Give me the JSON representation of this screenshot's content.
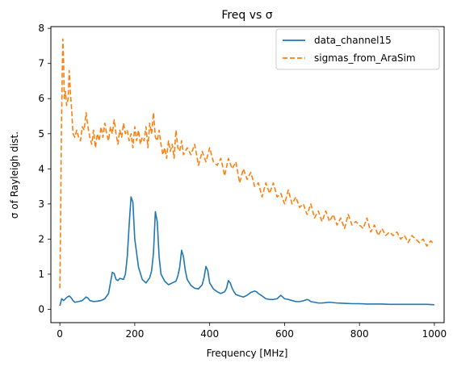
{
  "chart_data": {
    "type": "line",
    "title": "Freq vs σ",
    "xlabel": "Frequency [MHz]",
    "ylabel": "σ of Rayleigh dist.",
    "xlim": [
      -24,
      1026
    ],
    "ylim": [
      -0.38,
      8.05
    ],
    "xticks": [
      0,
      200,
      400,
      600,
      800,
      1000
    ],
    "yticks": [
      0,
      1,
      2,
      3,
      4,
      5,
      6,
      7,
      8
    ],
    "grid": false,
    "legend": {
      "position": "top-right"
    },
    "series": [
      {
        "name": "data_channel15",
        "color": "#1f77b4",
        "linestyle": "solid",
        "x": [
          0,
          5,
          10,
          15,
          20,
          25,
          30,
          35,
          40,
          50,
          60,
          65,
          70,
          75,
          80,
          90,
          100,
          110,
          120,
          130,
          135,
          140,
          145,
          150,
          155,
          160,
          170,
          175,
          180,
          185,
          190,
          195,
          200,
          205,
          210,
          220,
          230,
          240,
          245,
          250,
          255,
          260,
          265,
          270,
          280,
          290,
          300,
          310,
          315,
          320,
          325,
          330,
          335,
          340,
          350,
          360,
          370,
          380,
          385,
          390,
          395,
          400,
          410,
          420,
          430,
          440,
          445,
          450,
          455,
          460,
          465,
          470,
          480,
          490,
          500,
          510,
          520,
          525,
          530,
          540,
          550,
          560,
          570,
          580,
          585,
          590,
          595,
          600,
          610,
          620,
          630,
          640,
          650,
          655,
          660,
          665,
          670,
          680,
          690,
          700,
          710,
          720,
          740,
          760,
          780,
          800,
          820,
          840,
          860,
          880,
          900,
          920,
          940,
          960,
          980,
          1000
        ],
        "y": [
          0.1,
          0.3,
          0.25,
          0.3,
          0.35,
          0.38,
          0.33,
          0.25,
          0.2,
          0.22,
          0.25,
          0.3,
          0.35,
          0.32,
          0.25,
          0.22,
          0.23,
          0.25,
          0.3,
          0.45,
          0.75,
          1.05,
          1.02,
          0.85,
          0.82,
          0.88,
          0.85,
          1.0,
          1.5,
          2.4,
          3.2,
          3.05,
          2.0,
          1.6,
          1.2,
          0.85,
          0.75,
          0.9,
          1.1,
          1.6,
          2.78,
          2.5,
          1.5,
          1.0,
          0.8,
          0.7,
          0.75,
          0.8,
          0.95,
          1.2,
          1.68,
          1.5,
          1.1,
          0.85,
          0.68,
          0.6,
          0.58,
          0.7,
          0.9,
          1.22,
          1.1,
          0.75,
          0.58,
          0.5,
          0.45,
          0.5,
          0.6,
          0.82,
          0.75,
          0.6,
          0.5,
          0.42,
          0.38,
          0.35,
          0.4,
          0.48,
          0.52,
          0.5,
          0.45,
          0.38,
          0.3,
          0.28,
          0.28,
          0.3,
          0.35,
          0.4,
          0.35,
          0.3,
          0.28,
          0.25,
          0.22,
          0.22,
          0.24,
          0.26,
          0.28,
          0.26,
          0.22,
          0.2,
          0.18,
          0.18,
          0.19,
          0.2,
          0.18,
          0.17,
          0.16,
          0.16,
          0.15,
          0.15,
          0.15,
          0.14,
          0.14,
          0.14,
          0.14,
          0.14,
          0.14,
          0.13
        ]
      },
      {
        "name": "sigmas_from_AraSim",
        "color": "#ff7f0e",
        "linestyle": "dashed",
        "x": [
          0,
          2,
          4,
          6,
          8,
          10,
          12,
          15,
          18,
          22,
          25,
          28,
          32,
          35,
          40,
          45,
          50,
          55,
          60,
          65,
          70,
          75,
          80,
          85,
          90,
          95,
          100,
          105,
          110,
          115,
          120,
          125,
          130,
          135,
          140,
          145,
          150,
          155,
          160,
          165,
          170,
          175,
          180,
          185,
          190,
          195,
          200,
          205,
          210,
          215,
          220,
          225,
          230,
          235,
          240,
          245,
          250,
          255,
          260,
          265,
          270,
          275,
          280,
          285,
          290,
          295,
          300,
          305,
          310,
          315,
          320,
          325,
          330,
          340,
          350,
          360,
          370,
          380,
          390,
          400,
          410,
          420,
          430,
          440,
          450,
          460,
          470,
          480,
          490,
          500,
          510,
          520,
          530,
          540,
          550,
          560,
          570,
          580,
          590,
          600,
          610,
          620,
          630,
          640,
          650,
          660,
          670,
          680,
          690,
          700,
          710,
          720,
          730,
          740,
          750,
          760,
          770,
          780,
          790,
          800,
          810,
          820,
          830,
          840,
          850,
          860,
          870,
          880,
          890,
          900,
          910,
          920,
          930,
          940,
          950,
          960,
          970,
          980,
          990,
          1000
        ],
        "y": [
          0.6,
          2.5,
          5.0,
          6.5,
          7.7,
          7.0,
          6.0,
          6.2,
          5.8,
          6.0,
          6.8,
          6.2,
          5.6,
          5.0,
          4.9,
          5.1,
          4.9,
          4.8,
          5.2,
          5.1,
          5.6,
          5.2,
          4.9,
          4.7,
          5.1,
          4.6,
          5.0,
          4.8,
          5.2,
          4.9,
          5.3,
          5.0,
          4.8,
          5.2,
          5.0,
          5.4,
          5.0,
          4.7,
          5.1,
          4.9,
          5.3,
          5.0,
          5.1,
          4.8,
          5.0,
          4.6,
          5.2,
          4.8,
          5.1,
          4.7,
          4.9,
          4.8,
          5.2,
          4.6,
          5.3,
          5.0,
          5.6,
          4.9,
          4.8,
          5.1,
          4.7,
          4.4,
          4.6,
          4.3,
          4.8,
          4.5,
          4.7,
          4.3,
          5.1,
          4.6,
          4.5,
          4.8,
          4.4,
          4.6,
          4.4,
          4.7,
          4.1,
          4.5,
          4.2,
          4.6,
          4.2,
          4.1,
          4.3,
          3.8,
          4.3,
          4.0,
          4.2,
          3.6,
          4.0,
          3.7,
          3.9,
          3.5,
          3.6,
          3.2,
          3.6,
          3.3,
          3.6,
          3.2,
          3.3,
          3.0,
          3.4,
          3.0,
          3.2,
          2.9,
          3.0,
          2.7,
          3.0,
          2.6,
          2.8,
          2.5,
          2.8,
          2.5,
          2.7,
          2.4,
          2.6,
          2.3,
          2.7,
          2.4,
          2.5,
          2.4,
          2.3,
          2.6,
          2.2,
          2.4,
          2.1,
          2.3,
          2.1,
          2.2,
          2.1,
          2.2,
          2.0,
          2.1,
          1.9,
          2.1,
          2.0,
          1.9,
          2.0,
          1.8,
          1.95,
          1.85
        ]
      }
    ]
  }
}
